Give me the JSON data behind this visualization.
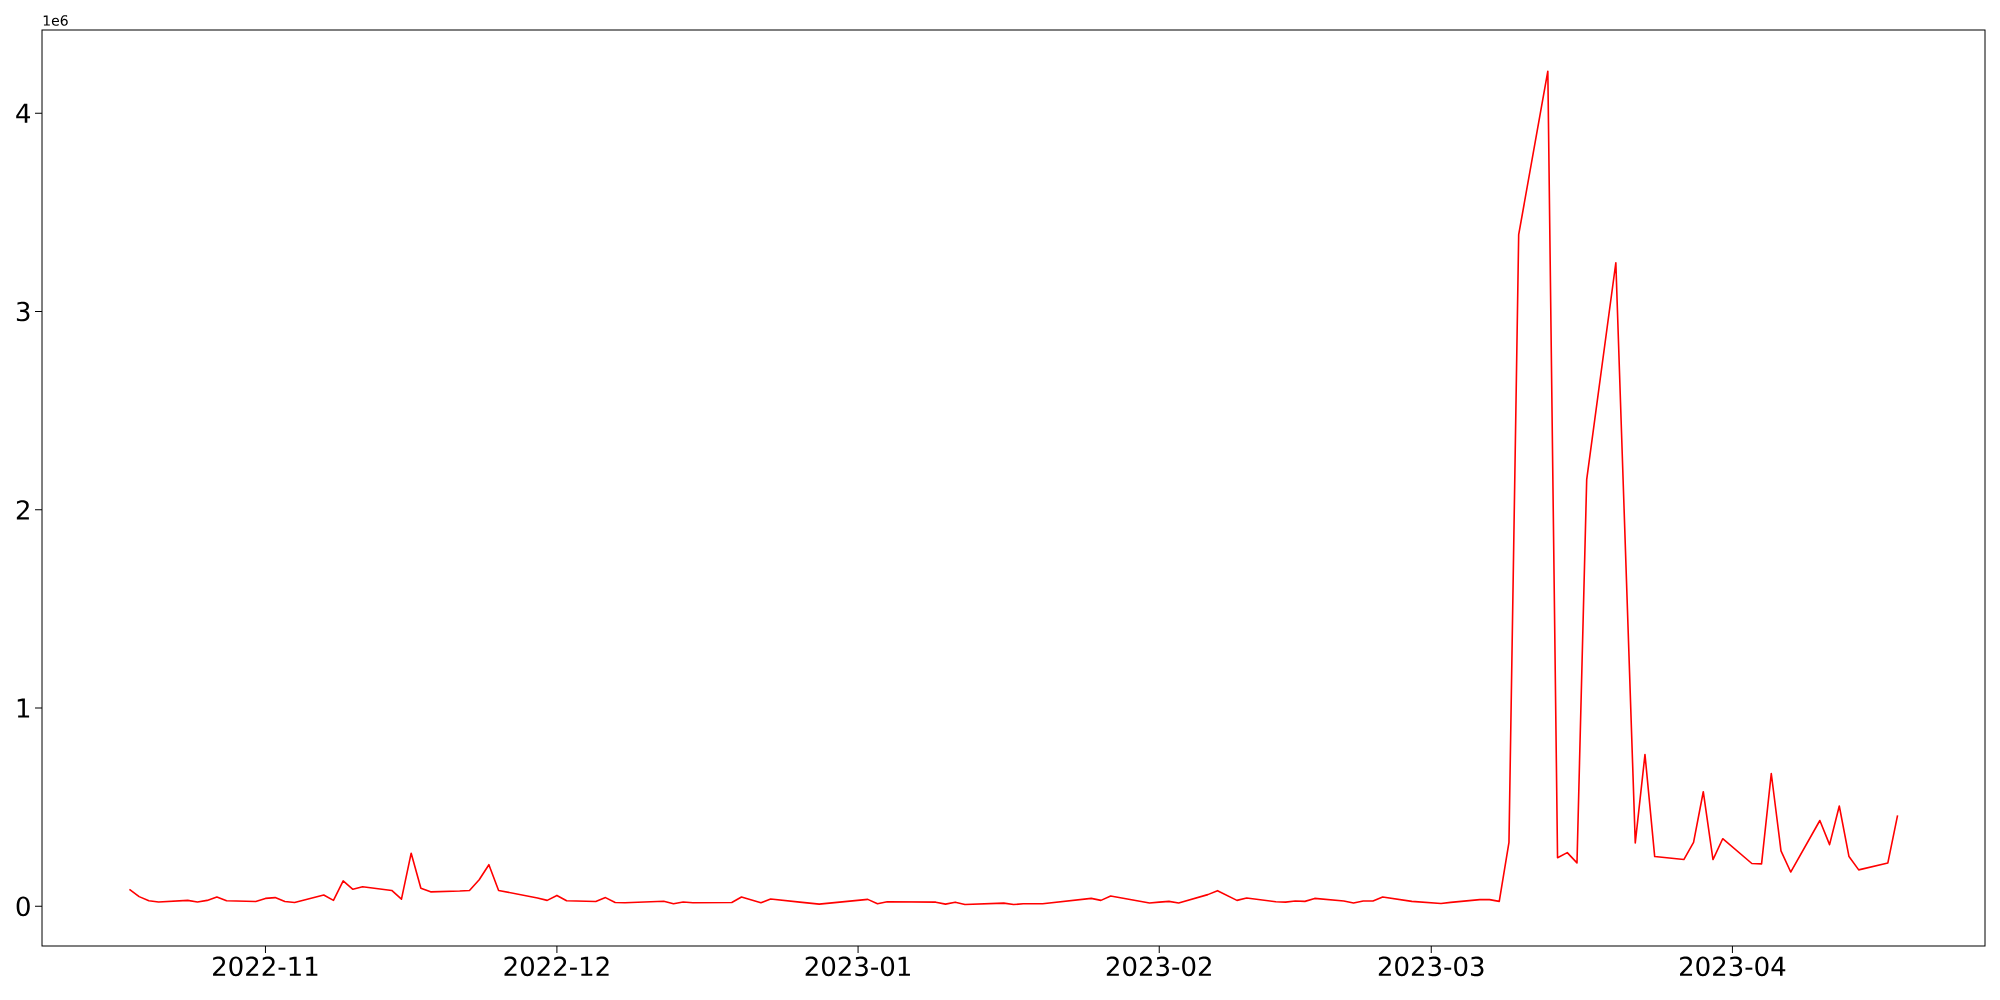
{
  "chart_data": {
    "type": "line",
    "color": "#ff0000",
    "annotations": [
      "1e6"
    ],
    "xlim": [
      "2022-10-09",
      "2023-04-27"
    ],
    "ylim": [
      -0.2,
      4.42
    ],
    "xticks": [
      {
        "value": "2022-11-01",
        "label": "2022-11"
      },
      {
        "value": "2022-12-01",
        "label": "2022-12"
      },
      {
        "value": "2023-01-01",
        "label": "2023-01"
      },
      {
        "value": "2023-02-01",
        "label": "2023-02"
      },
      {
        "value": "2023-03-01",
        "label": "2023-03"
      },
      {
        "value": "2023-04-01",
        "label": "2023-04"
      }
    ],
    "yticks": [
      0,
      1,
      2,
      3,
      4
    ],
    "x": [
      "2022-10-18",
      "2022-10-19",
      "2022-10-20",
      "2022-10-21",
      "2022-10-24",
      "2022-10-25",
      "2022-10-26",
      "2022-10-27",
      "2022-10-28",
      "2022-10-31",
      "2022-11-01",
      "2022-11-02",
      "2022-11-03",
      "2022-11-04",
      "2022-11-07",
      "2022-11-08",
      "2022-11-09",
      "2022-11-10",
      "2022-11-11",
      "2022-11-14",
      "2022-11-15",
      "2022-11-16",
      "2022-11-17",
      "2022-11-18",
      "2022-11-21",
      "2022-11-22",
      "2022-11-23",
      "2022-11-24",
      "2022-11-25",
      "2022-11-29",
      "2022-11-30",
      "2022-12-01",
      "2022-12-02",
      "2022-12-05",
      "2022-12-06",
      "2022-12-07",
      "2022-12-08",
      "2022-12-12",
      "2022-12-13",
      "2022-12-14",
      "2022-12-15",
      "2022-12-19",
      "2022-12-20",
      "2022-12-22",
      "2022-12-23",
      "2022-12-26",
      "2022-12-28",
      "2023-01-02",
      "2023-01-03",
      "2023-01-04",
      "2023-01-09",
      "2023-01-10",
      "2023-01-11",
      "2023-01-12",
      "2023-01-16",
      "2023-01-17",
      "2023-01-18",
      "2023-01-20",
      "2023-01-25",
      "2023-01-26",
      "2023-01-27",
      "2023-01-31",
      "2023-02-01",
      "2023-02-02",
      "2023-02-03",
      "2023-02-06",
      "2023-02-07",
      "2023-02-09",
      "2023-02-10",
      "2023-02-13",
      "2023-02-14",
      "2023-02-15",
      "2023-02-16",
      "2023-02-17",
      "2023-02-20",
      "2023-02-21",
      "2023-02-22",
      "2023-02-23",
      "2023-02-24",
      "2023-02-27",
      "2023-03-02",
      "2023-03-03",
      "2023-03-06",
      "2023-03-07",
      "2023-03-08",
      "2023-03-09",
      "2023-03-10",
      "2023-03-13",
      "2023-03-14",
      "2023-03-15",
      "2023-03-16",
      "2023-03-17",
      "2023-03-20",
      "2023-03-22",
      "2023-03-23",
      "2023-03-24",
      "2023-03-27",
      "2023-03-28",
      "2023-03-29",
      "2023-03-30",
      "2023-03-31",
      "2023-04-03",
      "2023-04-04",
      "2023-04-05",
      "2023-04-06",
      "2023-04-07",
      "2023-04-10",
      "2023-04-11",
      "2023-04-12",
      "2023-04-13",
      "2023-04-14",
      "2023-04-17",
      "2023-04-18"
    ],
    "values": [
      0.086,
      0.049,
      0.028,
      0.022,
      0.03,
      0.022,
      0.03,
      0.047,
      0.028,
      0.024,
      0.04,
      0.044,
      0.024,
      0.019,
      0.057,
      0.03,
      0.128,
      0.086,
      0.099,
      0.08,
      0.036,
      0.268,
      0.091,
      0.073,
      0.077,
      0.08,
      0.134,
      0.21,
      0.08,
      0.042,
      0.03,
      0.055,
      0.028,
      0.024,
      0.044,
      0.019,
      0.018,
      0.026,
      0.013,
      0.022,
      0.018,
      0.019,
      0.047,
      0.018,
      0.037,
      0.021,
      0.011,
      0.035,
      0.013,
      0.023,
      0.021,
      0.011,
      0.021,
      0.009,
      0.016,
      0.009,
      0.013,
      0.013,
      0.04,
      0.03,
      0.052,
      0.017,
      0.021,
      0.025,
      0.017,
      0.059,
      0.079,
      0.03,
      0.042,
      0.023,
      0.021,
      0.027,
      0.025,
      0.04,
      0.027,
      0.017,
      0.027,
      0.027,
      0.047,
      0.025,
      0.014,
      0.02,
      0.034,
      0.034,
      0.025,
      0.323,
      3.388,
      4.212,
      0.245,
      0.271,
      0.219,
      2.152,
      3.246,
      0.32,
      0.766,
      0.251,
      0.236,
      0.323,
      0.578,
      0.236,
      0.341,
      0.216,
      0.214,
      0.67,
      0.28,
      0.173,
      0.433,
      0.311,
      0.506,
      0.251,
      0.184,
      0.219,
      0.459
    ]
  }
}
